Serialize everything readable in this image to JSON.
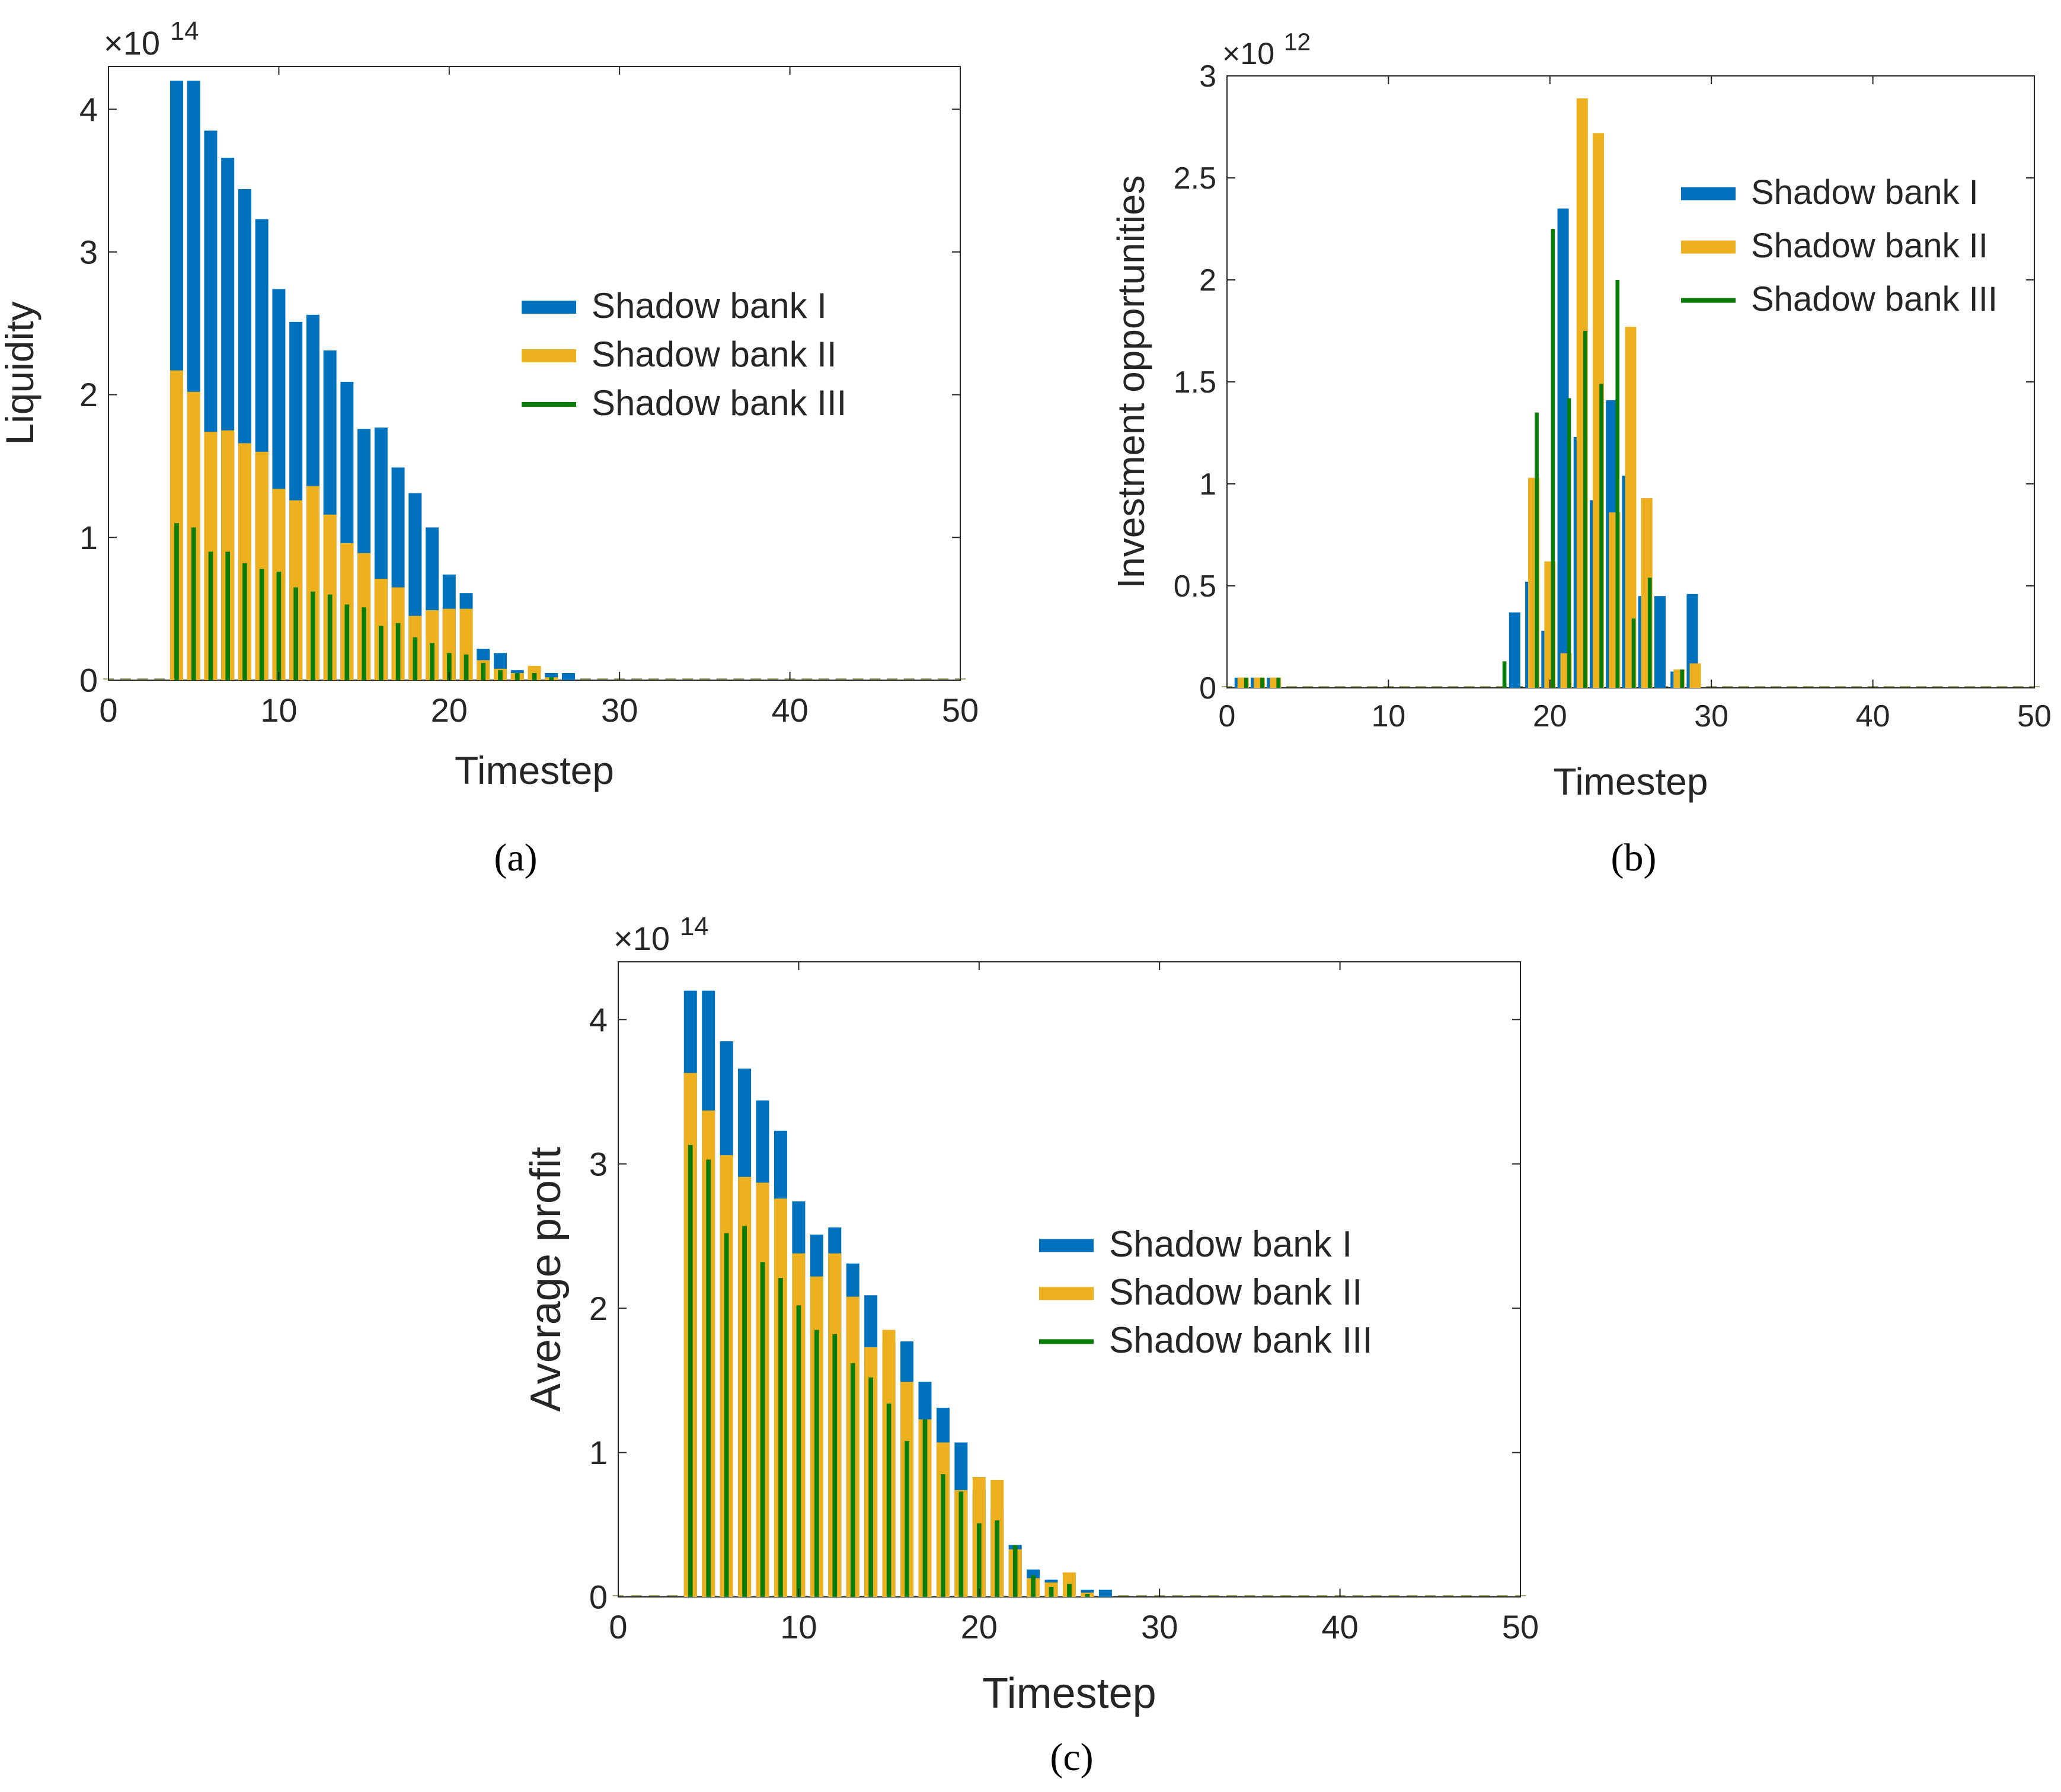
{
  "figure": {
    "captions": [
      "(a)",
      "(b)",
      "(c)"
    ]
  },
  "chart_data": [
    {
      "type": "bar",
      "title": "",
      "xlabel": "Timestep",
      "ylabel": "Liquidity",
      "exponent_label": "×10",
      "exponent_power": "14",
      "xlim": [
        0,
        50
      ],
      "ylim": [
        0,
        4.3
      ],
      "xticks": [
        0,
        10,
        20,
        30,
        40,
        50
      ],
      "yticks": [
        0,
        1,
        2,
        3,
        4
      ],
      "x": [
        4,
        5,
        6,
        7,
        8,
        9,
        10,
        11,
        12,
        13,
        14,
        15,
        16,
        17,
        18,
        19,
        20,
        21,
        22,
        23,
        24,
        25,
        26,
        27
      ],
      "series": [
        {
          "name": "Shadow bank I",
          "color": "#0072BD",
          "values": [
            4.2,
            4.2,
            3.85,
            3.66,
            3.44,
            3.23,
            2.74,
            2.51,
            2.56,
            2.31,
            2.09,
            1.76,
            1.77,
            1.49,
            1.31,
            1.07,
            0.74,
            0.61,
            0.22,
            0.19,
            0.07,
            0.08,
            0.05,
            0.05
          ]
        },
        {
          "name": "Shadow bank II",
          "color": "#EDB120",
          "values": [
            2.17,
            2.02,
            1.74,
            1.75,
            1.66,
            1.6,
            1.34,
            1.26,
            1.36,
            1.16,
            0.96,
            0.89,
            0.71,
            0.65,
            0.45,
            0.49,
            0.5,
            0.5,
            0.14,
            0.08,
            0.05,
            0.1,
            0.02,
            0.0
          ]
        },
        {
          "name": "Shadow bank III",
          "color": "#0A7C0A",
          "values": [
            1.1,
            1.07,
            0.9,
            0.9,
            0.82,
            0.78,
            0.76,
            0.65,
            0.62,
            0.6,
            0.53,
            0.51,
            0.38,
            0.4,
            0.3,
            0.26,
            0.19,
            0.18,
            0.12,
            0.07,
            0.05,
            0.05,
            0.02,
            0.0
          ]
        }
      ],
      "legend_position": "center-right"
    },
    {
      "type": "bar",
      "title": "",
      "xlabel": "Timestep",
      "ylabel": "Investment opportunities",
      "exponent_label": "×10",
      "exponent_power": "12",
      "xlim": [
        0,
        50
      ],
      "ylim": [
        0,
        3
      ],
      "xticks": [
        0,
        10,
        20,
        30,
        40,
        50
      ],
      "yticks": [
        0,
        0.5,
        1,
        1.5,
        2,
        2.5,
        3
      ],
      "x": [
        1,
        2,
        3,
        17,
        18,
        19,
        20,
        21,
        22,
        23,
        24,
        25,
        26,
        27,
        28,
        29
      ],
      "series": [
        {
          "name": "Shadow bank I",
          "color": "#0072BD",
          "values": [
            0.05,
            0.05,
            0.05,
            0.0,
            0.37,
            0.52,
            0.28,
            2.35,
            1.23,
            0.92,
            1.41,
            1.04,
            0.45,
            0.45,
            0.08,
            0.46
          ]
        },
        {
          "name": "Shadow bank II",
          "color": "#EDB120",
          "values": [
            0.05,
            0.05,
            0.05,
            0.0,
            0.0,
            1.03,
            0.62,
            0.17,
            2.89,
            2.72,
            0.86,
            1.77,
            0.93,
            0.0,
            0.09,
            0.12
          ]
        },
        {
          "name": "Shadow bank III",
          "color": "#0A7C0A",
          "values": [
            0.05,
            0.05,
            0.05,
            0.13,
            0.0,
            1.35,
            2.25,
            1.42,
            1.75,
            1.49,
            2.0,
            0.34,
            0.54,
            0.0,
            0.09,
            0.0
          ]
        }
      ],
      "legend_position": "top-right"
    },
    {
      "type": "bar",
      "title": "",
      "xlabel": "Timestep",
      "ylabel": "Average profit",
      "exponent_label": "×10",
      "exponent_power": "14",
      "xlim": [
        0,
        50
      ],
      "ylim": [
        0,
        4.4
      ],
      "xticks": [
        0,
        10,
        20,
        30,
        40,
        50
      ],
      "yticks": [
        0,
        1,
        2,
        3,
        4
      ],
      "x": [
        4,
        5,
        6,
        7,
        8,
        9,
        10,
        11,
        12,
        13,
        14,
        15,
        16,
        17,
        18,
        19,
        20,
        21,
        22,
        23,
        24,
        25,
        26,
        27
      ],
      "series": [
        {
          "name": "Shadow bank I",
          "color": "#0072BD",
          "values": [
            4.2,
            4.2,
            3.85,
            3.66,
            3.44,
            3.23,
            2.74,
            2.51,
            2.56,
            2.31,
            2.09,
            1.76,
            1.77,
            1.49,
            1.31,
            1.07,
            0.74,
            0.61,
            0.36,
            0.19,
            0.12,
            0.13,
            0.05,
            0.05
          ]
        },
        {
          "name": "Shadow bank II",
          "color": "#EDB120",
          "values": [
            3.63,
            3.37,
            3.06,
            2.91,
            2.87,
            2.76,
            2.38,
            2.22,
            2.38,
            2.08,
            1.73,
            1.85,
            1.49,
            1.23,
            1.07,
            0.74,
            0.83,
            0.81,
            0.33,
            0.13,
            0.1,
            0.17,
            0.03,
            0.0
          ]
        },
        {
          "name": "Shadow bank III",
          "color": "#0A7C0A",
          "values": [
            3.13,
            3.03,
            2.52,
            2.57,
            2.32,
            2.21,
            2.02,
            1.85,
            1.82,
            1.62,
            1.52,
            1.34,
            1.08,
            1.23,
            0.85,
            0.73,
            0.51,
            0.53,
            0.36,
            0.15,
            0.07,
            0.09,
            0.02,
            0.0
          ]
        }
      ],
      "legend_position": "center-right"
    }
  ]
}
